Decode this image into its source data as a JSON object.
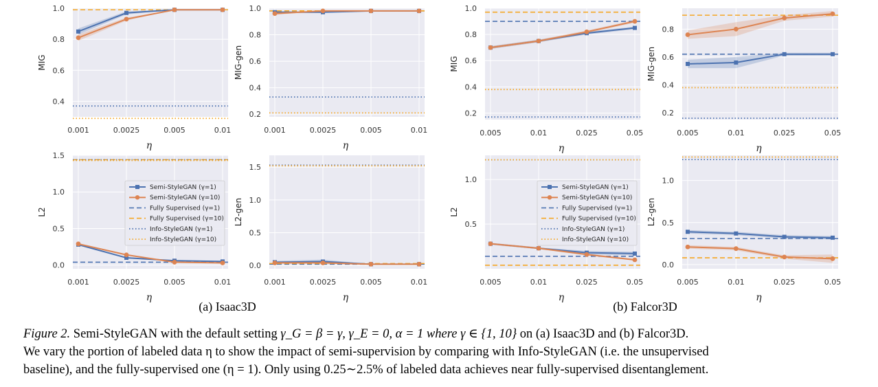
{
  "colors": {
    "semi1": "#4c72b0",
    "semi10": "#dd8452",
    "fully1": "#4c72b0",
    "fully10": "#f5a623",
    "info1": "#4c72b0",
    "info10": "#f5a623",
    "plot_bg": "#eaeaf2",
    "grid": "#ffffff"
  },
  "legend": {
    "semi1": "Semi-StyleGAN (γ=1)",
    "semi10": "Semi-StyleGAN (γ=10)",
    "fully1": "Fully Supervised (γ=1)",
    "fully10": "Fully Supervised (γ=10)",
    "info1": "Info-StyleGAN (γ=1)",
    "info10": "Info-StyleGAN (γ=10)"
  },
  "subfigures": {
    "isaac": "(a) Isaac3D",
    "falcor": "(b) Falcor3D"
  },
  "caption": {
    "figure_label": "Figure 2.",
    "line1_a": " Semi-StyleGAN with the default setting ",
    "line1_math": "γ_G = β = γ, γ_E = 0, α = 1 where γ ∈ {1, 10}",
    "line1_b": " on (a) Isaac3D and (b) Falcor3D.",
    "line2": "We vary the portion of labeled data η to show the impact of semi-supervision by comparing with Info-StyleGAN (i.e. the unsupervised",
    "line3": "baseline), and the fully-supervised one (η = 1). Only using 0.25∼2.5% of labeled data achieves near fully-supervised disentanglement."
  },
  "chart_data": [
    {
      "type": "line",
      "id": "isaac-mig",
      "ylabel": "MIG",
      "xlabel": "η",
      "categories": [
        "0.001",
        "0.0025",
        "0.005",
        "0.01"
      ],
      "ylim": [
        0.3,
        1.0
      ],
      "yticks": [
        "0.4",
        "0.6",
        "0.8",
        "1.0"
      ],
      "ytick_values": [
        0.4,
        0.6,
        0.8,
        1.0
      ],
      "series": [
        {
          "name": "Semi-StyleGAN (γ=1)",
          "key": "semi1",
          "values": [
            0.85,
            0.97,
            0.99,
            0.99
          ],
          "band": [
            0.02,
            0.01,
            0.0,
            0.0
          ]
        },
        {
          "name": "Semi-StyleGAN (γ=10)",
          "key": "semi10",
          "values": [
            0.81,
            0.93,
            0.99,
            0.99
          ],
          "band": [
            0.02,
            0.01,
            0.0,
            0.0
          ]
        }
      ],
      "refs": [
        {
          "name": "Fully Supervised (γ=1)",
          "key": "fully1",
          "value": 0.99
        },
        {
          "name": "Fully Supervised (γ=10)",
          "key": "fully10",
          "value": 0.99
        },
        {
          "name": "Info-StyleGAN (γ=1)",
          "key": "info1",
          "value": 0.37
        },
        {
          "name": "Info-StyleGAN (γ=10)",
          "key": "info10",
          "value": 0.29
        }
      ]
    },
    {
      "type": "line",
      "id": "isaac-miggen",
      "ylabel": "MIG-gen",
      "xlabel": "η",
      "categories": [
        "0.001",
        "0.0025",
        "0.005",
        "0.01"
      ],
      "ylim": [
        0.18,
        1.0
      ],
      "yticks": [
        "0.2",
        "0.4",
        "0.6",
        "0.8",
        "1.0"
      ],
      "ytick_values": [
        0.2,
        0.4,
        0.6,
        0.8,
        1.0
      ],
      "series": [
        {
          "name": "Semi-StyleGAN (γ=1)",
          "key": "semi1",
          "values": [
            0.97,
            0.97,
            0.98,
            0.98
          ],
          "band": [
            0.01,
            0.0,
            0.0,
            0.0
          ]
        },
        {
          "name": "Semi-StyleGAN (γ=10)",
          "key": "semi10",
          "values": [
            0.96,
            0.98,
            0.98,
            0.98
          ],
          "band": [
            0.01,
            0.0,
            0.0,
            0.0
          ]
        }
      ],
      "refs": [
        {
          "name": "Fully Supervised (γ=1)",
          "key": "fully1",
          "value": 0.98
        },
        {
          "name": "Fully Supervised (γ=10)",
          "key": "fully10",
          "value": 0.98
        },
        {
          "name": "Info-StyleGAN (γ=1)",
          "key": "info1",
          "value": 0.33
        },
        {
          "name": "Info-StyleGAN (γ=10)",
          "key": "info10",
          "value": 0.21
        }
      ]
    },
    {
      "type": "line",
      "id": "falcor-mig",
      "ylabel": "MIG",
      "xlabel": "η",
      "categories": [
        "0.005",
        "0.01",
        "0.025",
        "0.05"
      ],
      "ylim": [
        0.15,
        1.0
      ],
      "yticks": [
        "0.2",
        "0.4",
        "0.6",
        "0.8",
        "1.0"
      ],
      "ytick_values": [
        0.2,
        0.4,
        0.6,
        0.8,
        1.0
      ],
      "series": [
        {
          "name": "Semi-StyleGAN (γ=1)",
          "key": "semi1",
          "values": [
            0.7,
            0.75,
            0.81,
            0.85
          ],
          "band": [
            0.01,
            0.01,
            0.01,
            0.01
          ]
        },
        {
          "name": "Semi-StyleGAN (γ=10)",
          "key": "semi10",
          "values": [
            0.7,
            0.75,
            0.82,
            0.9
          ],
          "band": [
            0.01,
            0.01,
            0.01,
            0.01
          ]
        }
      ],
      "refs": [
        {
          "name": "Fully Supervised (γ=1)",
          "key": "fully1",
          "value": 0.9
        },
        {
          "name": "Fully Supervised (γ=10)",
          "key": "fully10",
          "value": 0.97
        },
        {
          "name": "Info-StyleGAN (γ=1)",
          "key": "info1",
          "value": 0.17
        },
        {
          "name": "Info-StyleGAN (γ=10)",
          "key": "info10",
          "value": 0.38
        }
      ]
    },
    {
      "type": "line",
      "id": "falcor-miggen",
      "ylabel": "MIG-gen",
      "xlabel": "η",
      "categories": [
        "0.005",
        "0.01",
        "0.025",
        "0.05"
      ],
      "ylim": [
        0.15,
        0.95
      ],
      "yticks": [
        "0.2",
        "0.4",
        "0.6",
        "0.8"
      ],
      "ytick_values": [
        0.2,
        0.4,
        0.6,
        0.8
      ],
      "series": [
        {
          "name": "Semi-StyleGAN (γ=1)",
          "key": "semi1",
          "values": [
            0.55,
            0.56,
            0.62,
            0.62
          ],
          "band": [
            0.03,
            0.04,
            0.01,
            0.01
          ]
        },
        {
          "name": "Semi-StyleGAN (γ=10)",
          "key": "semi10",
          "values": [
            0.76,
            0.8,
            0.88,
            0.91
          ],
          "band": [
            0.03,
            0.05,
            0.02,
            0.02
          ]
        }
      ],
      "refs": [
        {
          "name": "Fully Supervised (γ=1)",
          "key": "fully1",
          "value": 0.62
        },
        {
          "name": "Fully Supervised (γ=10)",
          "key": "fully10",
          "value": 0.9
        },
        {
          "name": "Info-StyleGAN (γ=1)",
          "key": "info1",
          "value": 0.16
        },
        {
          "name": "Info-StyleGAN (γ=10)",
          "key": "info10",
          "value": 0.38
        }
      ]
    },
    {
      "type": "line",
      "id": "isaac-l2",
      "ylabel": "L2",
      "xlabel": "η",
      "legend": "top-right",
      "categories": [
        "0.001",
        "0.0025",
        "0.005",
        "0.01"
      ],
      "ylim": [
        -0.05,
        1.5
      ],
      "yticks": [
        "0.0",
        "0.5",
        "1.0",
        "1.5"
      ],
      "ytick_values": [
        0.0,
        0.5,
        1.0,
        1.5
      ],
      "series": [
        {
          "name": "Semi-StyleGAN (γ=1)",
          "key": "semi1",
          "values": [
            0.28,
            0.1,
            0.06,
            0.05
          ],
          "band": [
            0.01,
            0.01,
            0.0,
            0.0
          ]
        },
        {
          "name": "Semi-StyleGAN (γ=10)",
          "key": "semi10",
          "values": [
            0.29,
            0.14,
            0.04,
            0.03
          ],
          "band": [
            0.01,
            0.01,
            0.0,
            0.0
          ]
        }
      ],
      "refs": [
        {
          "name": "Fully Supervised (γ=1)",
          "key": "fully1",
          "value": 0.04
        },
        {
          "name": "Fully Supervised (γ=10)",
          "key": "fully10",
          "value": 1.44
        },
        {
          "name": "Info-StyleGAN (γ=1)",
          "key": "info1",
          "value": 1.44
        },
        {
          "name": "Info-StyleGAN (γ=10)",
          "key": "info10",
          "value": 1.43
        }
      ]
    },
    {
      "type": "line",
      "id": "isaac-l2gen",
      "ylabel": "L2-gen",
      "xlabel": "η",
      "categories": [
        "0.001",
        "0.0025",
        "0.005",
        "0.01"
      ],
      "ylim": [
        -0.05,
        1.68
      ],
      "yticks": [
        "0.0",
        "0.5",
        "1.0",
        "1.5"
      ],
      "ytick_values": [
        0.0,
        0.5,
        1.0,
        1.5
      ],
      "series": [
        {
          "name": "Semi-StyleGAN (γ=1)",
          "key": "semi1",
          "values": [
            0.05,
            0.06,
            0.02,
            0.02
          ],
          "band": [
            0.02,
            0.03,
            0.0,
            0.0
          ]
        },
        {
          "name": "Semi-StyleGAN (γ=10)",
          "key": "semi10",
          "values": [
            0.04,
            0.04,
            0.02,
            0.02
          ],
          "band": [
            0.01,
            0.01,
            0.0,
            0.0
          ]
        }
      ],
      "refs": [
        {
          "name": "Fully Supervised (γ=1)",
          "key": "fully1",
          "value": 0.02
        },
        {
          "name": "Fully Supervised (γ=10)",
          "key": "fully10",
          "value": 0.03
        },
        {
          "name": "Info-StyleGAN (γ=1)",
          "key": "info1",
          "value": 1.53
        },
        {
          "name": "Info-StyleGAN (γ=10)",
          "key": "info10",
          "value": 1.52
        }
      ]
    },
    {
      "type": "line",
      "id": "falcor-l2",
      "ylabel": "L2",
      "xlabel": "η",
      "legend": "top-right",
      "categories": [
        "0.005",
        "0.01",
        "0.025",
        "0.05"
      ],
      "ylim": [
        0.0,
        1.27
      ],
      "yticks": [
        "0.5",
        "1.0"
      ],
      "ytick_values": [
        0.5,
        1.0
      ],
      "series": [
        {
          "name": "Semi-StyleGAN (γ=1)",
          "key": "semi1",
          "values": [
            0.28,
            0.23,
            0.18,
            0.17
          ],
          "band": [
            0.01,
            0.01,
            0.02,
            0.02
          ]
        },
        {
          "name": "Semi-StyleGAN (γ=10)",
          "key": "semi10",
          "values": [
            0.28,
            0.23,
            0.16,
            0.1
          ],
          "band": [
            0.01,
            0.01,
            0.01,
            0.01
          ]
        }
      ],
      "refs": [
        {
          "name": "Fully Supervised (γ=1)",
          "key": "fully1",
          "value": 0.14
        },
        {
          "name": "Fully Supervised (γ=10)",
          "key": "fully10",
          "value": 0.04
        },
        {
          "name": "Info-StyleGAN (γ=1)",
          "key": "info1",
          "value": 1.22
        },
        {
          "name": "Info-StyleGAN (γ=10)",
          "key": "info10",
          "value": 1.22
        }
      ]
    },
    {
      "type": "line",
      "id": "falcor-l2gen",
      "ylabel": "L2-gen",
      "xlabel": "η",
      "categories": [
        "0.005",
        "0.01",
        "0.025",
        "0.05"
      ],
      "ylim": [
        -0.05,
        1.3
      ],
      "yticks": [
        "0.0",
        "0.5",
        "1.0"
      ],
      "ytick_values": [
        0.0,
        0.5,
        1.0
      ],
      "series": [
        {
          "name": "Semi-StyleGAN (γ=1)",
          "key": "semi1",
          "values": [
            0.39,
            0.37,
            0.33,
            0.32
          ],
          "band": [
            0.02,
            0.02,
            0.02,
            0.02
          ]
        },
        {
          "name": "Semi-StyleGAN (γ=10)",
          "key": "semi10",
          "values": [
            0.21,
            0.19,
            0.09,
            0.07
          ],
          "band": [
            0.02,
            0.02,
            0.02,
            0.05
          ]
        }
      ],
      "refs": [
        {
          "name": "Fully Supervised (γ=1)",
          "key": "fully1",
          "value": 0.31
        },
        {
          "name": "Fully Supervised (γ=10)",
          "key": "fully10",
          "value": 0.08
        },
        {
          "name": "Info-StyleGAN (γ=1)",
          "key": "info1",
          "value": 1.25
        },
        {
          "name": "Info-StyleGAN (γ=10)",
          "key": "info10",
          "value": 1.28
        }
      ]
    }
  ]
}
